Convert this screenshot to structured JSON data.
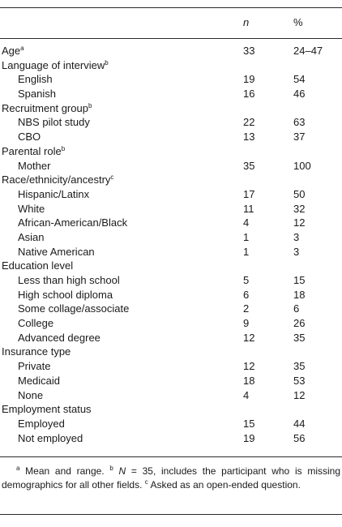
{
  "header": {
    "n": "n",
    "pct": "%"
  },
  "rows": [
    {
      "label": "Age",
      "sup": "a",
      "n": "33",
      "pct": "24–47",
      "indent": false
    },
    {
      "label": "Language of interview",
      "sup": "b",
      "n": "",
      "pct": "",
      "indent": false
    },
    {
      "label": "English",
      "sup": "",
      "n": "19",
      "pct": "54",
      "indent": true
    },
    {
      "label": "Spanish",
      "sup": "",
      "n": "16",
      "pct": "46",
      "indent": true
    },
    {
      "label": "Recruitment group",
      "sup": "b",
      "n": "",
      "pct": "",
      "indent": false
    },
    {
      "label": "NBS pilot study",
      "sup": "",
      "n": "22",
      "pct": "63",
      "indent": true
    },
    {
      "label": "CBO",
      "sup": "",
      "n": "13",
      "pct": "37",
      "indent": true
    },
    {
      "label": "Parental role",
      "sup": "b",
      "n": "",
      "pct": "",
      "indent": false
    },
    {
      "label": "Mother",
      "sup": "",
      "n": "35",
      "pct": "100",
      "indent": true
    },
    {
      "label": "Race/ethnicity/ancestry",
      "sup": "c",
      "n": "",
      "pct": "",
      "indent": false
    },
    {
      "label": "Hispanic/Latinx",
      "sup": "",
      "n": "17",
      "pct": "50",
      "indent": true
    },
    {
      "label": "White",
      "sup": "",
      "n": "11",
      "pct": "32",
      "indent": true
    },
    {
      "label": "African-American/Black",
      "sup": "",
      "n": "4",
      "pct": "12",
      "indent": true
    },
    {
      "label": "Asian",
      "sup": "",
      "n": "1",
      "pct": "3",
      "indent": true
    },
    {
      "label": "Native American",
      "sup": "",
      "n": "1",
      "pct": "3",
      "indent": true
    },
    {
      "label": "Education level",
      "sup": "",
      "n": "",
      "pct": "",
      "indent": false
    },
    {
      "label": "Less than high school",
      "sup": "",
      "n": "5",
      "pct": "15",
      "indent": true
    },
    {
      "label": "High school diploma",
      "sup": "",
      "n": "6",
      "pct": "18",
      "indent": true
    },
    {
      "label": "Some collage/associate",
      "sup": "",
      "n": "2",
      "pct": "6",
      "indent": true
    },
    {
      "label": "College",
      "sup": "",
      "n": "9",
      "pct": "26",
      "indent": true
    },
    {
      "label": "Advanced degree",
      "sup": "",
      "n": "12",
      "pct": "35",
      "indent": true
    },
    {
      "label": "Insurance type",
      "sup": "",
      "n": "",
      "pct": "",
      "indent": false
    },
    {
      "label": "Private",
      "sup": "",
      "n": "12",
      "pct": "35",
      "indent": true
    },
    {
      "label": "Medicaid",
      "sup": "",
      "n": "18",
      "pct": "53",
      "indent": true
    },
    {
      "label": "None",
      "sup": "",
      "n": "4",
      "pct": "12",
      "indent": true
    },
    {
      "label": "Employment status",
      "sup": "",
      "n": "",
      "pct": "",
      "indent": false
    },
    {
      "label": "Employed",
      "sup": "",
      "n": "15",
      "pct": "44",
      "indent": true
    },
    {
      "label": "Not employed",
      "sup": "",
      "n": "19",
      "pct": "56",
      "indent": true
    }
  ],
  "footnotes": {
    "a_mark": "a",
    "a_text": " Mean and range. ",
    "b_mark": "b",
    "b_n": "N",
    "b_text": " = 35, includes the participant who is missing demographics for all other fields. ",
    "c_mark": "c",
    "c_text": " Asked as an open-ended question."
  }
}
